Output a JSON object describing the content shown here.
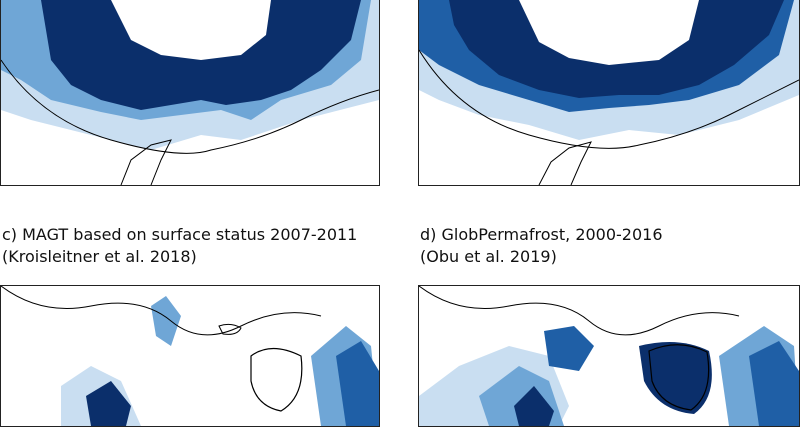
{
  "colors": {
    "permafrost_dark": "#0b2f6b",
    "permafrost_mid": "#1f5fa6",
    "permafrost_light": "#6fa6d6",
    "permafrost_pale": "#c9def1",
    "coast": "#000000",
    "background": "#ffffff"
  },
  "panels": [
    {
      "id": "a",
      "caption_line1": "",
      "caption_line2": ""
    },
    {
      "id": "b",
      "caption_line1": "",
      "caption_line2": ""
    },
    {
      "id": "c",
      "caption_line1": "c) MAGT based on surface status 2007-2011",
      "caption_line2": "(Kroisleitner et al. 2018)"
    },
    {
      "id": "d",
      "caption_line1": "d) GlobPermafrost, 2000-2016",
      "caption_line2": "(Obu et al. 2019)"
    }
  ]
}
